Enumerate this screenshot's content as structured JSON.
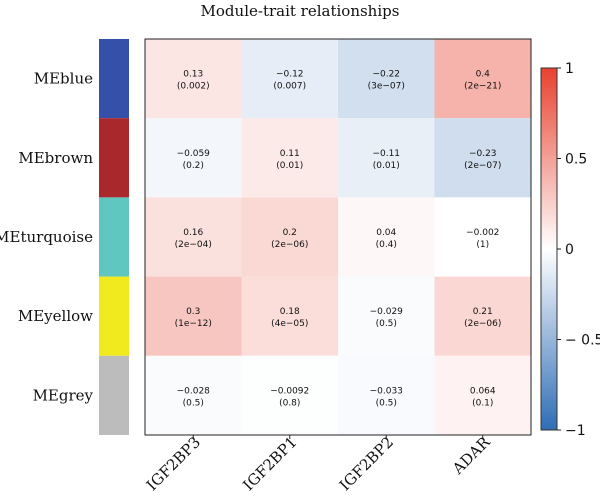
{
  "chart_data": {
    "type": "heatmap",
    "title": "Module-trait relationships",
    "rows": [
      "MEblue",
      "MEbrown",
      "MEturquoise",
      "MEyellow",
      "MEgrey"
    ],
    "row_colors": [
      "#3550a8",
      "#a8282c",
      "#60c6c0",
      "#f0ea1e",
      "#bdbcbd"
    ],
    "columns": [
      "IGF2BP3",
      "IGF2BP1",
      "IGF2BP2",
      "ADAR"
    ],
    "values": [
      [
        0.13,
        -0.12,
        -0.22,
        0.4
      ],
      [
        -0.059,
        0.11,
        -0.11,
        -0.23
      ],
      [
        0.16,
        0.2,
        0.04,
        -0.002
      ],
      [
        0.3,
        0.18,
        -0.029,
        0.21
      ],
      [
        -0.028,
        -0.0092,
        -0.033,
        0.064
      ]
    ],
    "value_labels": [
      [
        "0.13",
        "−0.12",
        "−0.22",
        "0.4"
      ],
      [
        "−0.059",
        "0.11",
        "−0.11",
        "−0.23"
      ],
      [
        "0.16",
        "0.2",
        "0.04",
        "−0.002"
      ],
      [
        "0.3",
        "0.18",
        "−0.029",
        "0.21"
      ],
      [
        "−0.028",
        "−0.0092",
        "−0.033",
        "0.064"
      ]
    ],
    "pvalues": [
      [
        "(0.002)",
        "(0.007)",
        "(3e−07)",
        "(2e−21)"
      ],
      [
        "(0.2)",
        "(0.01)",
        "(0.01)",
        "(2e−07)"
      ],
      [
        "(2e−04)",
        "(2e−06)",
        "(0.4)",
        "(1)"
      ],
      [
        "(1e−12)",
        "(4e−05)",
        "(0.5)",
        "(2e−06)"
      ],
      [
        "(0.5)",
        "(0.8)",
        "(0.5)",
        "(0.1)"
      ]
    ],
    "colorbar": {
      "range": [
        -1,
        1
      ],
      "ticks": [
        1,
        0.5,
        0,
        -0.5,
        -1
      ],
      "tick_labels": [
        "1",
        "0.5",
        "0",
        "− 0.5",
        "−1"
      ],
      "low_color": "#2f6db5",
      "mid_color": "#ffffff",
      "high_color": "#e8422e"
    }
  }
}
